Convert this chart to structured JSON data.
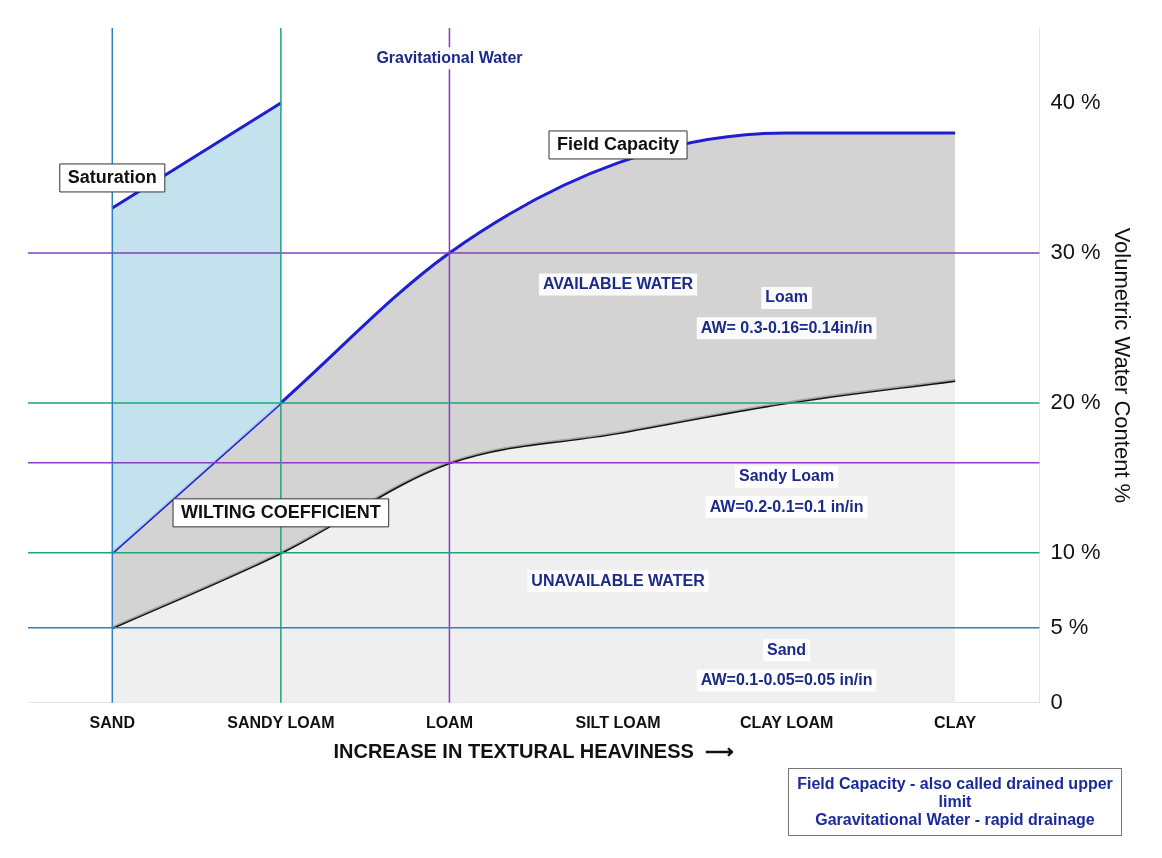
{
  "chart_data": {
    "type": "area",
    "xlabel": "INCREASE IN TEXTURAL HEAVINESS  ⟶",
    "ylabel": "Volumetric Water Content %",
    "categories": [
      "SAND",
      "SANDY LOAM",
      "LOAM",
      "SILT LOAM",
      "CLAY LOAM",
      "CLAY"
    ],
    "series": [
      {
        "name": "Saturation",
        "color": "#1f1fd0",
        "values": [
          33,
          40,
          null,
          null,
          null,
          null
        ]
      },
      {
        "name": "Field Capacity",
        "color": "#1f1fd0",
        "values": [
          10,
          20,
          30,
          36,
          38,
          38
        ]
      },
      {
        "name": "WILTING COEFFICIENT",
        "color": "#111111",
        "values": [
          5,
          10,
          16,
          18,
          20,
          21.5
        ]
      }
    ],
    "ylim": [
      0,
      45
    ],
    "yticks": [
      {
        "value": 0,
        "label": "0"
      },
      {
        "value": 5,
        "label": "5 %"
      },
      {
        "value": 10,
        "label": "10 %"
      },
      {
        "value": 20,
        "label": "20 %"
      },
      {
        "value": 30,
        "label": "30 %"
      },
      {
        "value": 40,
        "label": "40 %"
      }
    ],
    "grid": false,
    "legend": false,
    "ref_lines": [
      {
        "axis": "y",
        "value": 30,
        "color": "#8a3cc4"
      },
      {
        "axis": "y",
        "value": 16,
        "color": "#8a3cc4"
      },
      {
        "axis": "x",
        "value": "LOAM",
        "color": "#8a3cc4"
      },
      {
        "axis": "y",
        "value": 20,
        "color": "#1fa37a"
      },
      {
        "axis": "y",
        "value": 10,
        "color": "#1fa37a"
      },
      {
        "axis": "x",
        "value": "SANDY LOAM",
        "color": "#1fa37a"
      },
      {
        "axis": "y",
        "value": 5,
        "color": "#2f7fc1"
      },
      {
        "axis": "x",
        "value": "SAND",
        "color": "#2f7fc1"
      }
    ],
    "annotations": [
      "Gravitational Water",
      "AVAILABLE WATER",
      "UNAVAILABLE WATER",
      "Loam",
      "AW= 0.3-0.16=0.14in/in",
      "Sandy Loam",
      "AW=0.2-0.1=0.1 in/in",
      "Sand",
      "AW=0.1-0.05=0.05 in/in",
      "Field Capacity  - also called drained upper limit",
      "Garavitational Water - rapid drainage"
    ]
  }
}
